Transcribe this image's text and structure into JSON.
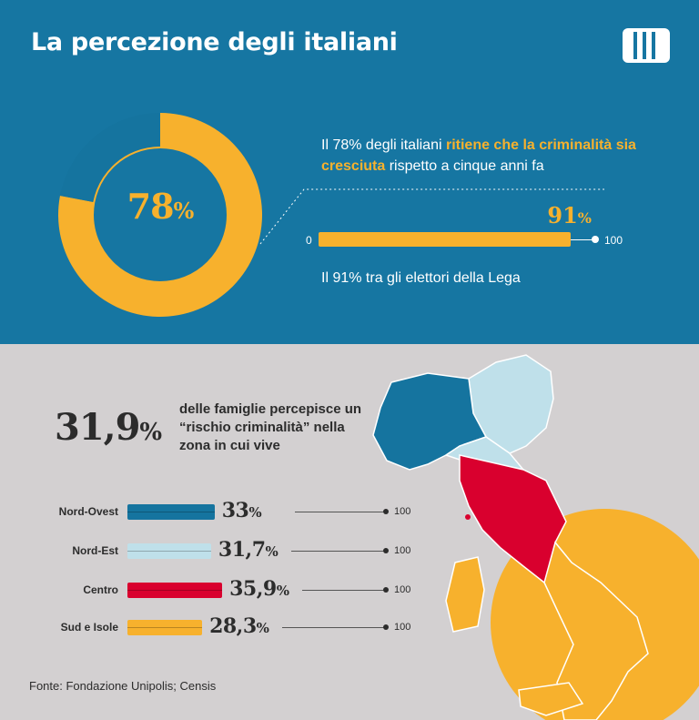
{
  "header": {
    "title": "La percezione degli italiani",
    "logo_icon": "publisher-logo-icon"
  },
  "top_section": {
    "statement": {
      "part1": "Il 78% degli italiani ",
      "highlight": "ritiene che la criminalità sia cresciuta",
      "part2": " rispetto a cinque anni fa"
    },
    "lega_text": "Il 91% tra gli elettori della Lega",
    "axis_min_label": "0",
    "axis_max_label": "100"
  },
  "bottom_section": {
    "headline_value": "31,9",
    "headline_unit": "%",
    "headline_text": "delle famiglie percepisce un “rischio criminalità” nella zona in cui vive",
    "axis_max_label": "100",
    "source": "Fonte: Fondazione Unipolis; Censis"
  },
  "colors": {
    "top_background": "#1676a2",
    "bottom_background": "#d3d0d1",
    "accent_yellow": "#f7b12d",
    "nord_ovest": "#15749f",
    "nord_est": "#bfe0ea",
    "centro": "#d9002e",
    "sud_isole": "#f7b12d"
  },
  "chart_data": [
    {
      "type": "pie",
      "title": "",
      "values": [
        78,
        22
      ],
      "display_value": "78",
      "display_unit": "%",
      "colors": [
        "#f7b12d",
        "#15749f"
      ]
    },
    {
      "type": "bar",
      "orientation": "horizontal",
      "categories": [
        ""
      ],
      "values": [
        91
      ],
      "display_value": "91",
      "display_unit": "%",
      "xlim": [
        0,
        100
      ]
    },
    {
      "type": "bar",
      "orientation": "horizontal",
      "categories": [
        "Nord-Ovest",
        "Nord-Est",
        "Centro",
        "Sud e Isole"
      ],
      "values": [
        33,
        31.7,
        35.9,
        28.3
      ],
      "value_labels": [
        "33",
        "31,7",
        "35,9",
        "28,3"
      ],
      "unit": "%",
      "colors": [
        "#15749f",
        "#bfe0ea",
        "#d9002e",
        "#f7b12d"
      ],
      "xlim": [
        0,
        100
      ]
    }
  ]
}
